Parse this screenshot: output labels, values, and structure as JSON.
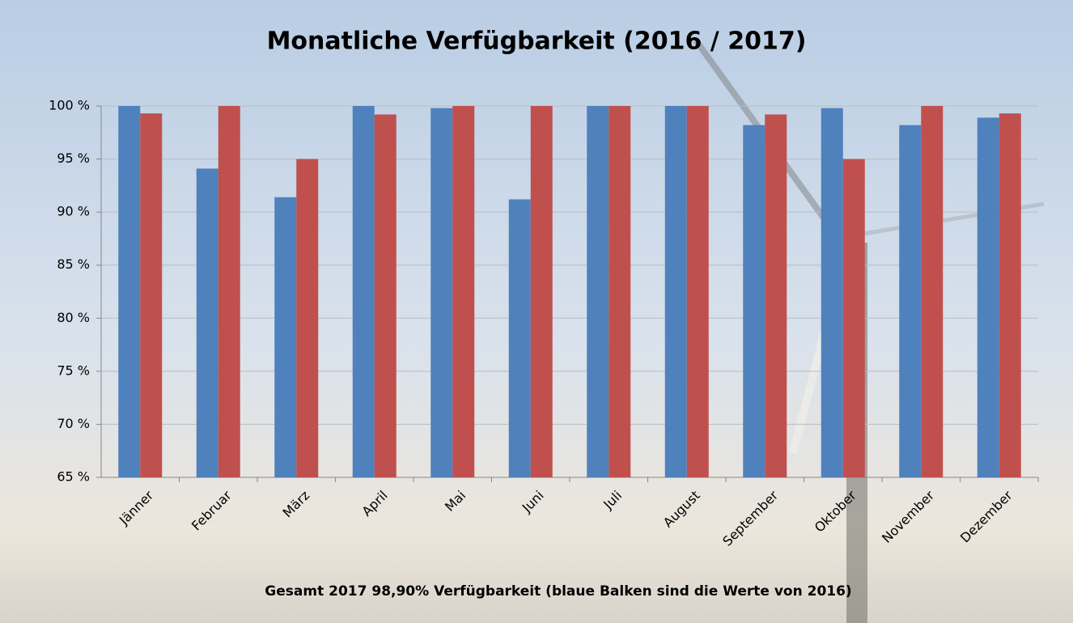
{
  "chart_data": {
    "type": "bar",
    "title": "Monatliche Verfügbarkeit (2016 / 2017)",
    "footnote": "Gesamt 2017   98,90% Verfügbarkeit   (blaue Balken sind die Werte von 2016)",
    "categories": [
      "Jänner",
      "Februar",
      "März",
      "April",
      "Mai",
      "Juni",
      "Juli",
      "August",
      "September",
      "Oktober",
      "November",
      "Dezember"
    ],
    "series": [
      {
        "color": "#4f81bd",
        "values": [
          100,
          94.1,
          91.4,
          100,
          99.8,
          91.2,
          100,
          100,
          98.2,
          99.8,
          98.2,
          98.9
        ]
      },
      {
        "color": "#c0504d",
        "values": [
          99.3,
          100,
          95.0,
          99.2,
          100,
          100,
          100,
          100,
          99.2,
          95.0,
          100,
          99.3
        ]
      }
    ],
    "ylim": [
      65,
      100
    ],
    "yticks": [
      {
        "value": 65,
        "label": "65 %"
      },
      {
        "value": 70,
        "label": "70 %"
      },
      {
        "value": 75,
        "label": "75 %"
      },
      {
        "value": 80,
        "label": "80 %"
      },
      {
        "value": 85,
        "label": "85 %"
      },
      {
        "value": 90,
        "label": "90 %"
      },
      {
        "value": 95,
        "label": "95 %"
      },
      {
        "value": 100,
        "label": "100 %"
      }
    ],
    "grid": true
  }
}
